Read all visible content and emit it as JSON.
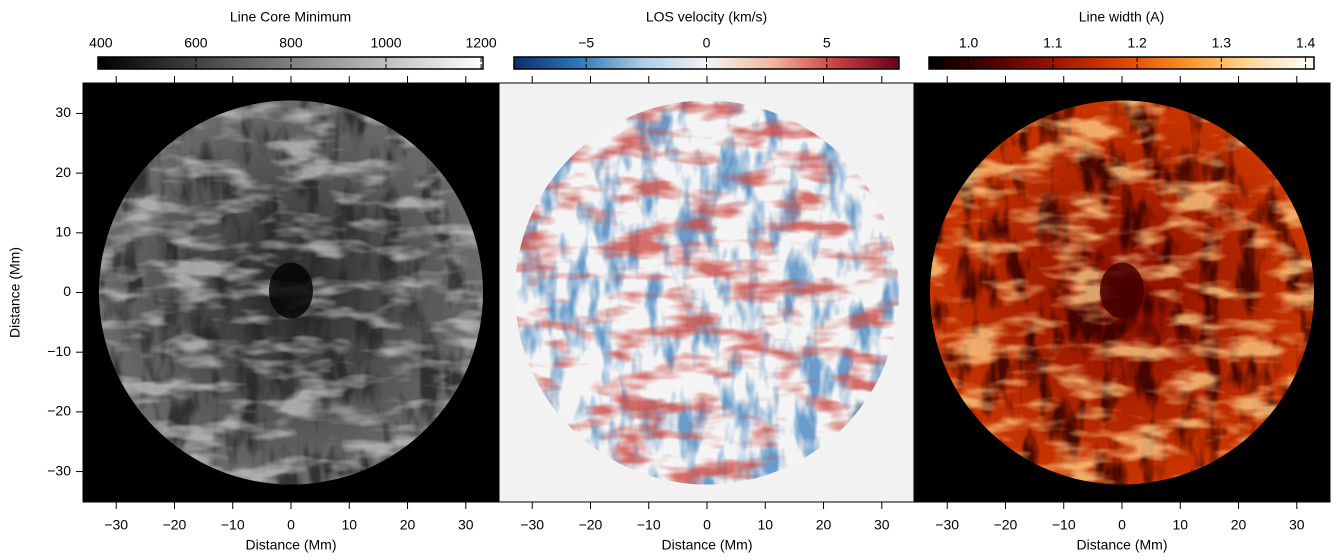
{
  "chart_data": [
    {
      "type": "image",
      "title": "Line Core Minimum",
      "colormap": [
        "#000000",
        "#ffffff"
      ],
      "clim": [
        394,
        1204
      ],
      "cticks": [
        400,
        600,
        800,
        1000,
        1200
      ],
      "background": "#000000",
      "xlabel": "Distance (Mm)",
      "ylabel": "Distance (Mm)",
      "xlim": [
        -35.7,
        35.7
      ],
      "ylim": [
        -35.1,
        35.1
      ],
      "xticks": [
        {
          "value": -30,
          "label": "−30"
        },
        {
          "value": -20,
          "label": "−20"
        },
        {
          "value": -10,
          "label": "−10"
        },
        0,
        10,
        20,
        30
      ],
      "yticks": [
        {
          "value": -30,
          "label": "−30"
        },
        {
          "value": -20,
          "label": "−20"
        },
        {
          "value": -10,
          "label": "−10"
        },
        0,
        10,
        20,
        30
      ]
    },
    {
      "type": "image",
      "title": "LOS velocity (km/s)",
      "colormap": [
        "#08306b",
        "#2f76b6",
        "#a9cde6",
        "#f4f4f4",
        "#f3b9a0",
        "#c8443f",
        "#67001f"
      ],
      "clim": [
        -8,
        8
      ],
      "cticks": [
        {
          "value": -5,
          "label": "−5"
        },
        0,
        5
      ],
      "background": "#f2f2f2",
      "xlabel": "Distance (Mm)",
      "xlim": [
        -35.7,
        35.7
      ],
      "ylim": [
        -35.1,
        35.1
      ],
      "xticks": [
        {
          "value": -30,
          "label": "−30"
        },
        {
          "value": -20,
          "label": "−20"
        },
        {
          "value": -10,
          "label": "−10"
        },
        0,
        10,
        20,
        30
      ]
    },
    {
      "type": "image",
      "title": "Line width (A)",
      "colormap": [
        "#000000",
        "#4d0000",
        "#a01500",
        "#dc4200",
        "#f89228",
        "#ffd89a",
        "#ffffff"
      ],
      "clim": [
        0.953,
        1.41
      ],
      "cticks": [
        {
          "value": 1,
          "label": "1.0"
        },
        1.1,
        1.2,
        1.3,
        1.4
      ],
      "background": "#000000",
      "xlabel": "Distance (Mm)",
      "xlim": [
        -35.7,
        35.7
      ],
      "ylim": [
        -35.1,
        35.1
      ],
      "xticks": [
        {
          "value": -30,
          "label": "−30"
        },
        {
          "value": -20,
          "label": "−20"
        },
        {
          "value": -10,
          "label": "−10"
        },
        0,
        10,
        20,
        30
      ]
    }
  ]
}
